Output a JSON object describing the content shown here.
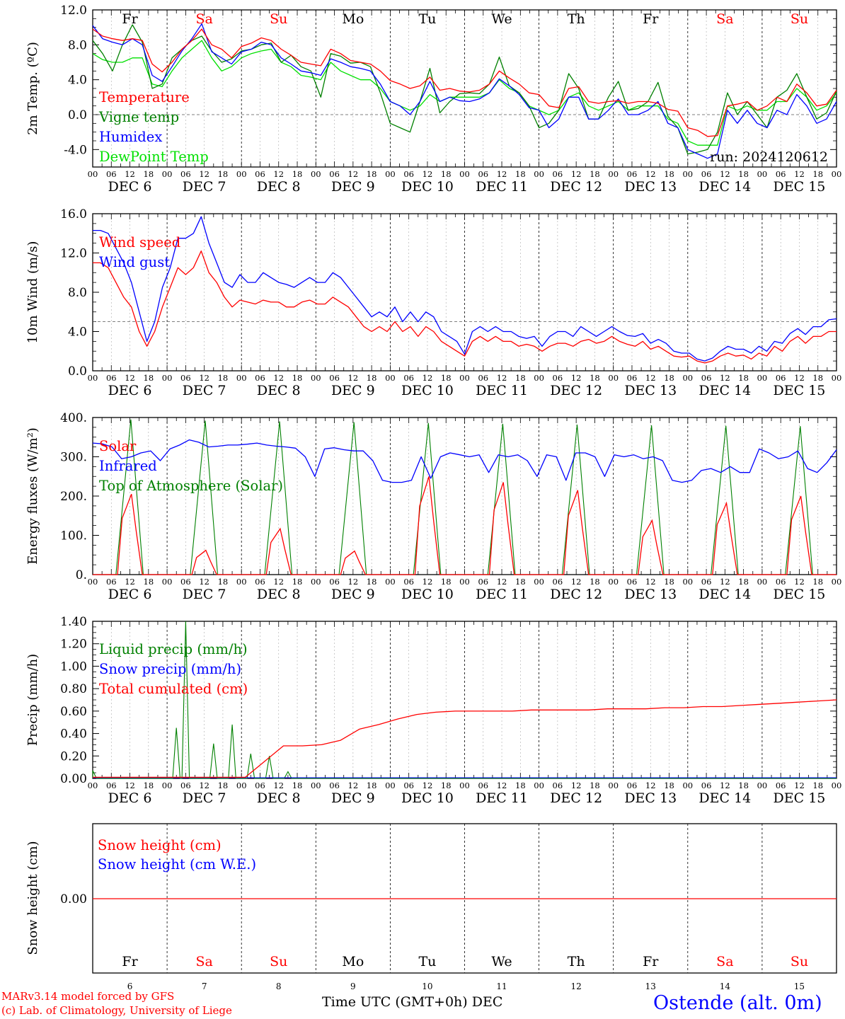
{
  "chart_data": [
    {
      "type": "line",
      "ylabel": "2m Temp. (ºC)",
      "ylim": [
        -6,
        12
      ],
      "yticks": [
        -4.0,
        0.0,
        4.0,
        8.0,
        12.0
      ],
      "ytick_labels": [
        "-4.0",
        "0.0",
        "4.0",
        "8.0",
        "12.0"
      ],
      "reference_line": 0,
      "annotation": "run: 2024120612",
      "legend": [
        {
          "label": "Temperature",
          "color": "#ff0000"
        },
        {
          "label": "Vigne temp",
          "color": "#008000"
        },
        {
          "label": "Humidex",
          "color": "#0000ff"
        },
        {
          "label": "DewPoint Temp",
          "color": "#00e000"
        }
      ],
      "x_start": "2024-12-06 00:00 UTC",
      "x_step_hours": 6,
      "series": [
        {
          "name": "Temperature",
          "color": "#ff0000",
          "values": [
            9.8,
            9.0,
            8.7,
            8.5,
            8.7,
            8.5,
            5.8,
            4.9,
            6.0,
            7.5,
            8.5,
            9.8,
            8.0,
            7.5,
            6.5,
            7.8,
            8.2,
            8.8,
            8.5,
            7.5,
            6.8,
            6.0,
            5.8,
            5.6,
            7.5,
            7.0,
            6.2,
            6.0,
            5.8,
            5.0,
            3.9,
            3.5,
            3.0,
            3.3,
            4.3,
            2.8,
            3.0,
            2.7,
            2.6,
            2.8,
            3.5,
            5.0,
            4.2,
            3.5,
            2.5,
            2.3,
            1.0,
            0.8,
            3.0,
            3.2,
            1.5,
            1.3,
            1.5,
            1.6,
            1.3,
            1.5,
            1.5,
            1.3,
            0.6,
            0.4,
            -1.5,
            -1.8,
            -2.5,
            -2.4,
            1.0,
            1.2,
            1.5,
            0.5,
            1.0,
            2.0,
            1.5,
            3.5,
            2.5,
            1.0,
            1.2,
            2.8
          ]
        },
        {
          "name": "Vigne temp",
          "color": "#008000",
          "values": [
            8.5,
            7.0,
            5.0,
            8.0,
            10.3,
            8.3,
            3.0,
            3.5,
            6.5,
            7.5,
            8.5,
            9.0,
            7.3,
            6.0,
            6.4,
            7.3,
            7.5,
            8.0,
            8.2,
            6.0,
            6.8,
            5.5,
            5.0,
            2.0,
            7.0,
            6.7,
            5.9,
            6.0,
            5.5,
            2.5,
            -1.0,
            -1.5,
            -2.0,
            1.5,
            5.3,
            0.2,
            1.5,
            2.4,
            2.5,
            2.4,
            3.5,
            6.6,
            3.3,
            2.5,
            1.0,
            -1.5,
            -1.0,
            0.5,
            4.7,
            3.0,
            -0.5,
            -0.5,
            2.0,
            3.8,
            0.5,
            0.7,
            1.5,
            3.7,
            -0.2,
            -1.5,
            -4.5,
            -4.3,
            -4.0,
            -2.0,
            2.5,
            0.0,
            1.5,
            0.0,
            -1.5,
            2.0,
            2.8,
            4.7,
            2.0,
            -0.5,
            0.2,
            2.7
          ]
        },
        {
          "name": "Humidex",
          "color": "#0000ff",
          "values": [
            10.2,
            8.7,
            8.3,
            8.0,
            8.7,
            8.0,
            4.5,
            3.8,
            5.5,
            7.3,
            8.7,
            10.4,
            7.2,
            6.5,
            5.8,
            7.2,
            7.5,
            8.3,
            8.0,
            6.5,
            5.8,
            5.0,
            4.8,
            4.5,
            6.4,
            6.0,
            5.5,
            5.3,
            5.0,
            3.5,
            1.5,
            1.0,
            0.0,
            1.5,
            3.8,
            1.5,
            2.0,
            1.6,
            1.5,
            1.8,
            2.5,
            4.1,
            3.3,
            2.3,
            0.8,
            0.5,
            -1.5,
            -0.5,
            2.0,
            2.0,
            -0.5,
            -0.5,
            0.5,
            1.8,
            0.0,
            0.0,
            0.5,
            1.5,
            -1.0,
            -1.5,
            -4.0,
            -4.5,
            -5.0,
            -4.5,
            0.5,
            -1.0,
            0.5,
            -1.0,
            -1.5,
            0.5,
            0.0,
            2.3,
            1.0,
            -1.0,
            -0.5,
            1.5
          ]
        },
        {
          "name": "DewPoint Temp",
          "color": "#00e000",
          "values": [
            7.0,
            6.3,
            6.0,
            6.0,
            6.5,
            6.5,
            3.5,
            3.2,
            5.0,
            6.5,
            7.5,
            8.5,
            6.5,
            5.0,
            5.5,
            6.5,
            7.0,
            7.3,
            7.5,
            6.0,
            5.5,
            4.5,
            4.3,
            4.0,
            6.0,
            5.0,
            4.5,
            4.0,
            4.0,
            3.0,
            1.5,
            1.0,
            0.5,
            1.0,
            2.3,
            1.5,
            2.0,
            2.0,
            2.0,
            2.0,
            2.5,
            4.0,
            3.0,
            2.5,
            1.0,
            0.5,
            0.0,
            0.5,
            2.0,
            2.5,
            1.0,
            0.5,
            1.0,
            1.5,
            0.5,
            1.0,
            1.0,
            1.0,
            -0.5,
            -1.0,
            -3.0,
            -3.5,
            -3.5,
            -3.5,
            1.0,
            0.5,
            1.0,
            0.5,
            0.5,
            1.5,
            1.5,
            3.0,
            2.0,
            0.5,
            1.0,
            2.5
          ]
        }
      ]
    },
    {
      "type": "line",
      "ylabel": "10m Wind (m/s)",
      "ylim": [
        0,
        16
      ],
      "yticks": [
        0.0,
        4.0,
        8.0,
        12.0,
        16.0
      ],
      "ytick_labels": [
        "0.0",
        "4.0",
        "8.0",
        "12.0",
        "16.0"
      ],
      "reference_line": 5,
      "legend": [
        {
          "label": "Wind speed",
          "color": "#ff0000"
        },
        {
          "label": "Wind gust",
          "color": "#0000ff"
        }
      ],
      "x_start": "2024-12-06 00:00 UTC",
      "x_step_hours": 6,
      "series": [
        {
          "name": "Wind speed",
          "color": "#ff0000",
          "values": [
            11.0,
            11.0,
            10.5,
            9.0,
            7.5,
            6.5,
            4.0,
            2.5,
            4.0,
            6.5,
            8.5,
            10.5,
            9.8,
            10.5,
            12.2,
            10.0,
            9.0,
            7.5,
            6.5,
            7.2,
            7.0,
            6.8,
            7.2,
            7.0,
            7.0,
            6.5,
            6.5,
            7.0,
            7.2,
            6.8,
            6.8,
            7.5,
            7.0,
            6.5,
            5.5,
            4.5,
            4.0,
            4.5,
            4.0,
            5.0,
            4.0,
            4.5,
            3.5,
            4.5,
            4.0,
            3.0,
            2.5,
            2.0,
            1.5,
            3.0,
            3.5,
            3.0,
            3.5,
            3.0,
            3.0,
            2.5,
            2.7,
            2.5,
            2.0,
            2.5,
            2.8,
            2.8,
            2.5,
            3.0,
            3.2,
            2.8,
            3.0,
            3.5,
            3.0,
            2.7,
            2.5,
            3.0,
            2.2,
            2.5,
            2.0,
            1.5,
            1.4,
            1.5,
            1.0,
            0.8,
            1.0,
            1.5,
            1.8,
            1.5,
            1.6,
            1.2,
            1.8,
            1.5,
            2.5,
            2.0,
            3.0,
            3.5,
            2.8,
            3.5,
            3.5,
            4.0,
            4.0
          ]
        },
        {
          "name": "Wind gust",
          "color": "#0000ff",
          "values": [
            14.3,
            14.3,
            14.0,
            12.5,
            11.0,
            9.0,
            6.0,
            3.0,
            5.0,
            8.5,
            10.5,
            13.5,
            13.5,
            14.0,
            15.7,
            13.0,
            11.0,
            9.0,
            8.5,
            9.8,
            9.0,
            9.0,
            10.0,
            9.5,
            9.0,
            8.8,
            8.5,
            9.0,
            9.5,
            9.0,
            9.0,
            10.0,
            9.5,
            8.5,
            7.5,
            6.5,
            5.5,
            6.0,
            5.5,
            6.5,
            5.0,
            6.0,
            5.0,
            6.0,
            5.5,
            4.0,
            3.5,
            3.0,
            1.7,
            4.0,
            4.5,
            4.0,
            4.5,
            4.0,
            4.0,
            3.5,
            3.3,
            3.5,
            2.5,
            3.5,
            4.0,
            4.0,
            3.5,
            4.5,
            4.0,
            3.5,
            4.0,
            4.5,
            4.0,
            3.6,
            3.5,
            3.8,
            2.8,
            3.2,
            2.8,
            2.0,
            1.8,
            1.8,
            1.2,
            1.0,
            1.3,
            2.0,
            2.5,
            2.2,
            2.2,
            1.8,
            2.5,
            2.0,
            3.0,
            2.8,
            3.8,
            4.3,
            3.7,
            4.5,
            4.5,
            5.2,
            5.3
          ]
        }
      ]
    },
    {
      "type": "line",
      "ylabel": "Energy fluxes (W/m²)",
      "ylim": [
        0,
        400
      ],
      "yticks": [
        0,
        100,
        200,
        300,
        400
      ],
      "ytick_labels": [
        "0.",
        "100.",
        "200.",
        "300.",
        "400."
      ],
      "legend": [
        {
          "label": "Solar",
          "color": "#ff0000"
        },
        {
          "label": "Infrared",
          "color": "#0000ff"
        },
        {
          "label": "Top of Atmosphere (Solar)",
          "color": "#008000"
        }
      ],
      "daily_peaks": {
        "Solar": [
          205,
          62,
          117,
          60,
          250,
          235,
          215,
          138,
          182,
          200
        ],
        "Top of Atmosphere (Solar)": [
          395,
          392,
          390,
          388,
          386,
          384,
          382,
          380,
          379,
          378
        ]
      },
      "x_start": "2024-12-06 00:00 UTC",
      "x_step_hours": 6,
      "series": [
        {
          "name": "Infrared",
          "color": "#0000ff",
          "values": [
            335,
            333,
            325,
            295,
            300,
            310,
            315,
            290,
            320,
            330,
            343,
            337,
            325,
            327,
            330,
            330,
            332,
            335,
            330,
            327,
            325,
            322,
            300,
            250,
            320,
            323,
            318,
            315,
            315,
            290,
            240,
            235,
            235,
            240,
            300,
            245,
            300,
            310,
            305,
            300,
            305,
            260,
            305,
            300,
            305,
            290,
            250,
            305,
            300,
            240,
            310,
            310,
            300,
            250,
            305,
            300,
            305,
            295,
            300,
            290,
            240,
            235,
            240,
            265,
            270,
            260,
            275,
            260,
            260,
            320,
            310,
            295,
            300,
            315,
            270,
            260,
            285,
            318
          ]
        }
      ]
    },
    {
      "type": "line",
      "ylabel": "Precip (mm/h)",
      "ylim": [
        0,
        1.4
      ],
      "yticks": [
        0.0,
        0.2,
        0.4,
        0.6,
        0.8,
        1.0,
        1.2,
        1.4
      ],
      "ytick_labels": [
        "0.00",
        "0.20",
        "0.40",
        "0.60",
        "0.80",
        "1.00",
        "1.20",
        "1.40"
      ],
      "legend": [
        {
          "label": "Liquid precip (mm/h)",
          "color": "#008000"
        },
        {
          "label": "Snow precip (mm/h)",
          "color": "#0000ff"
        },
        {
          "label": "Total cumulated (cm)",
          "color": "#ff0000"
        }
      ],
      "liquid_peaks": [
        {
          "day": 0,
          "hour": 0,
          "value": 0.07
        },
        {
          "day": 1,
          "hour": 3,
          "value": 0.45
        },
        {
          "day": 1,
          "hour": 6,
          "value": 1.4
        },
        {
          "day": 1,
          "hour": 15,
          "value": 0.31
        },
        {
          "day": 1,
          "hour": 21,
          "value": 0.48
        },
        {
          "day": 2,
          "hour": 3,
          "value": 0.22
        },
        {
          "day": 2,
          "hour": 9,
          "value": 0.2
        },
        {
          "day": 2,
          "hour": 15,
          "value": 0.06
        }
      ],
      "x_start": "2024-12-06 00:00 UTC",
      "x_step_hours": 6,
      "series": [
        {
          "name": "Total cumulated (cm)",
          "color": "#ff0000",
          "values": [
            0.01,
            0.01,
            0.01,
            0.01,
            0.01,
            0.01,
            0.01,
            0.01,
            0.01,
            0.15,
            0.29,
            0.29,
            0.3,
            0.34,
            0.44,
            0.48,
            0.53,
            0.57,
            0.59,
            0.6,
            0.6,
            0.6,
            0.6,
            0.61,
            0.61,
            0.61,
            0.61,
            0.62,
            0.62,
            0.62,
            0.63,
            0.63,
            0.64,
            0.64,
            0.65,
            0.66,
            0.67,
            0.68,
            0.69,
            0.7
          ]
        }
      ]
    },
    {
      "type": "line",
      "ylabel": "Snow height (cm)",
      "ytick_labels": [
        "0.00"
      ],
      "legend": [
        {
          "label": "Snow height (cm)",
          "color": "#ff0000"
        },
        {
          "label": "Snow height (cm W.E.)",
          "color": "#0000ff"
        }
      ],
      "series": [
        {
          "name": "Snow height (cm)",
          "color": "#ff0000",
          "values": [
            0.0,
            0.0
          ]
        }
      ]
    }
  ],
  "axis": {
    "weekdays": [
      "Fr",
      "Sa",
      "Su",
      "Mo",
      "Tu",
      "We",
      "Th",
      "Fr",
      "Sa",
      "Su"
    ],
    "weekend": [
      false,
      true,
      true,
      false,
      false,
      false,
      false,
      false,
      true,
      true
    ],
    "date_labels": [
      "DEC  6",
      "DEC  7",
      "DEC  8",
      "DEC  9",
      "DEC 10",
      "DEC 11",
      "DEC 12",
      "DEC 13",
      "DEC 14",
      "DEC 15"
    ],
    "day_numbers": [
      "6",
      "7",
      "8",
      "9",
      "10",
      "11",
      "12",
      "13",
      "14",
      "15"
    ],
    "hour_labels": [
      "00",
      "06",
      "12",
      "18"
    ],
    "final_hour_label": "00"
  },
  "footer": {
    "credit_line1": "MARv3.14 model forced by GFS",
    "credit_line2": "(c) Lab. of Climatology, University of Liege",
    "xtitle": "Time UTC (GMT+0h) DEC",
    "station": "Ostende (alt. 0m)"
  },
  "colors": {
    "weekday": "#000000",
    "weekend": "#ff0000",
    "station": "#0000ff"
  }
}
